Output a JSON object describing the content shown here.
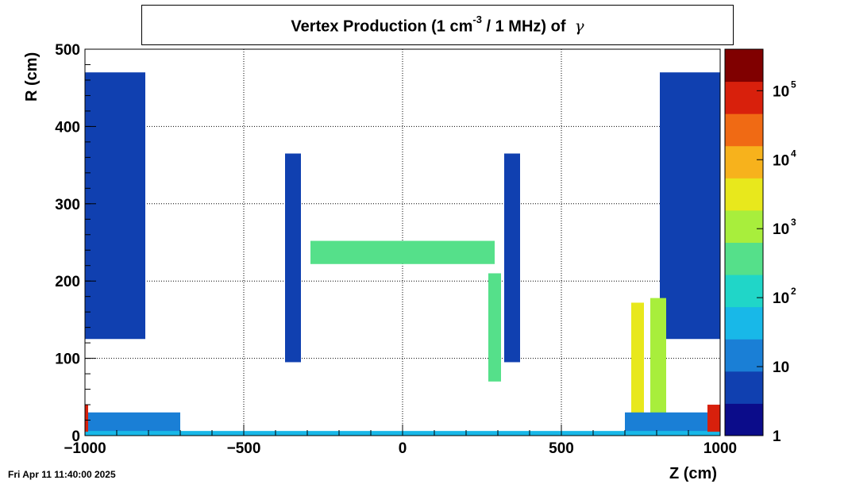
{
  "title": {
    "main": "Vertex Production (1 cm",
    "sup": "-3",
    "rest": " / 1 MHz) of",
    "particle": "γ"
  },
  "timestamp": "Fri Apr 11 11:40:00 2025",
  "chart_data": {
    "type": "heatmap",
    "xlabel": "Z (cm)",
    "ylabel": "R (cm)",
    "xlim": [
      -1000,
      1000
    ],
    "ylim": [
      0,
      500
    ],
    "x_ticks": [
      "−1000",
      "−500",
      "0",
      "500",
      "1000"
    ],
    "x_tick_values": [
      -1000,
      -500,
      0,
      500,
      1000
    ],
    "y_ticks": [
      "0",
      "100",
      "200",
      "300",
      "400",
      "500"
    ],
    "y_tick_values": [
      0,
      100,
      200,
      300,
      400,
      500
    ],
    "grid": true,
    "colorbar": {
      "scale": "log",
      "range": [
        1,
        400000
      ],
      "labels": [
        {
          "value": 1,
          "base": "1",
          "exp": ""
        },
        {
          "value": 10,
          "base": "10",
          "exp": ""
        },
        {
          "value": 100,
          "base": "10",
          "exp": "2"
        },
        {
          "value": 1000,
          "base": "10",
          "exp": "3"
        },
        {
          "value": 10000,
          "base": "10",
          "exp": "4"
        },
        {
          "value": 100000,
          "base": "10",
          "exp": "5"
        }
      ],
      "colors": [
        "#0b0c8a",
        "#1040b0",
        "#1a7fd6",
        "#18b8e8",
        "#20d6c8",
        "#55e08a",
        "#a8ee3c",
        "#e8e81c",
        "#f7b21c",
        "#f06a14",
        "#d8200c",
        "#800000"
      ]
    },
    "regions": [
      {
        "name": "endcap-left-upper",
        "z": [
          -1000,
          -810
        ],
        "r": [
          125,
          470
        ],
        "value": 3
      },
      {
        "name": "endcap-right-upper",
        "z": [
          810,
          1000
        ],
        "r": [
          125,
          470
        ],
        "value": 3
      },
      {
        "name": "barrel-top-band",
        "z": [
          -290,
          290
        ],
        "r": [
          222,
          252
        ],
        "value": 300
      },
      {
        "name": "barrel-left-wall",
        "z": [
          -370,
          -320
        ],
        "r": [
          95,
          365
        ],
        "value": 5
      },
      {
        "name": "barrel-right-wall",
        "z": [
          320,
          370
        ],
        "r": [
          95,
          365
        ],
        "value": 5
      },
      {
        "name": "right-inner-wall",
        "z": [
          270,
          310
        ],
        "r": [
          70,
          210
        ],
        "value": 500
      },
      {
        "name": "forward-pillar-1",
        "z": [
          720,
          760
        ],
        "r": [
          20,
          172
        ],
        "value": 3000
      },
      {
        "name": "forward-pillar-2",
        "z": [
          780,
          830
        ],
        "r": [
          20,
          178
        ],
        "value": 800
      },
      {
        "name": "beamline-left",
        "z": [
          -1000,
          -700
        ],
        "r": [
          5,
          30
        ],
        "value": 10
      },
      {
        "name": "beamline-right",
        "z": [
          700,
          1000
        ],
        "r": [
          5,
          30
        ],
        "value": 10
      },
      {
        "name": "beampipe",
        "z": [
          -1000,
          1000
        ],
        "r": [
          0,
          6
        ],
        "value": 30
      },
      {
        "name": "ip-beam-hot",
        "z": [
          -1000,
          -990
        ],
        "r": [
          5,
          40
        ],
        "value": 50000
      },
      {
        "name": "ip-beam-hot-right",
        "z": [
          960,
          1000
        ],
        "r": [
          5,
          40
        ],
        "value": 50000
      }
    ]
  }
}
